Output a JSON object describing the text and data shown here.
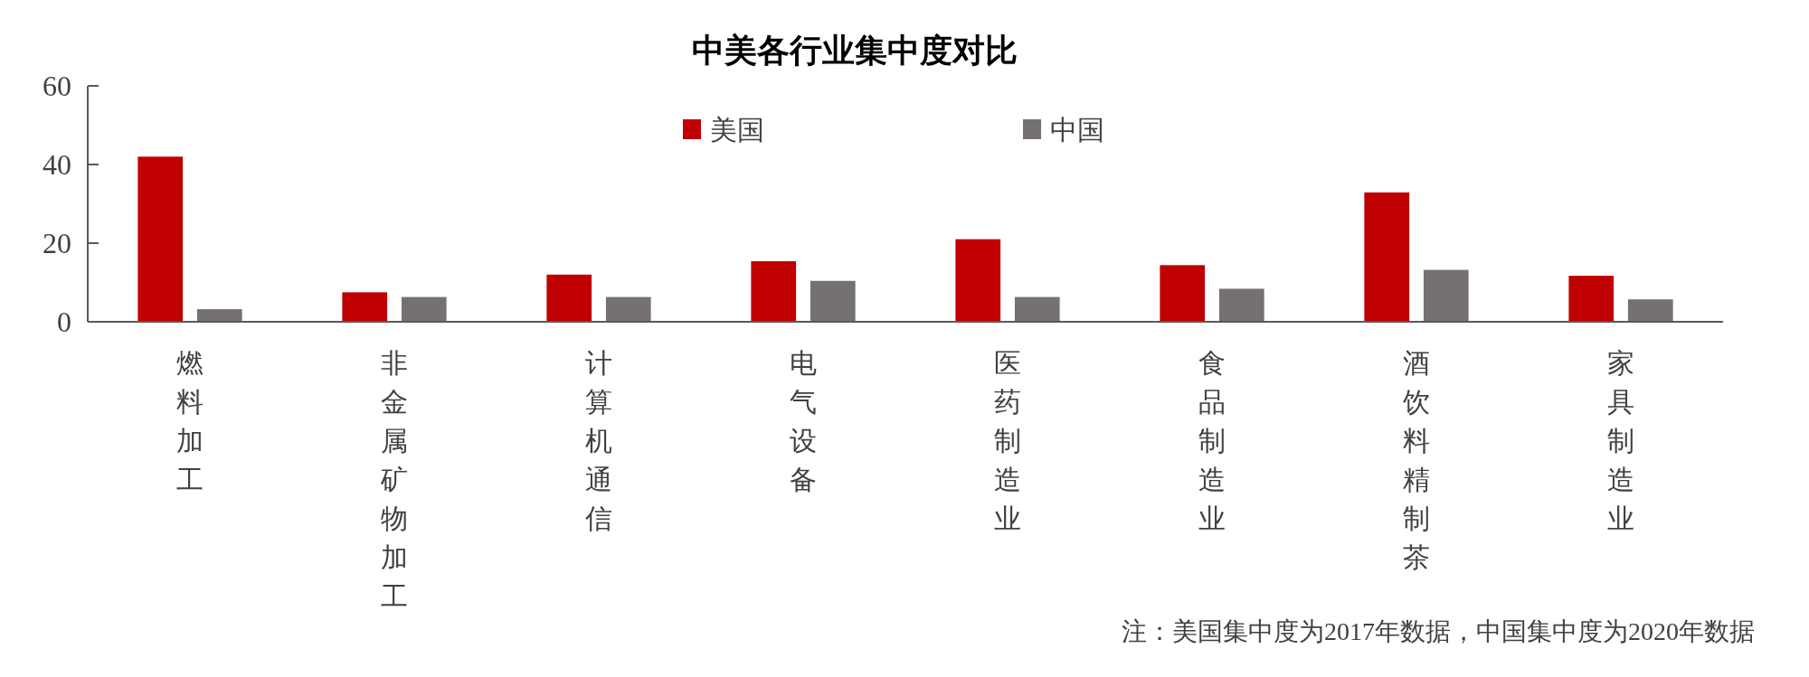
{
  "chart_data": {
    "type": "bar",
    "title": "中美各行业集中度对比",
    "categories": [
      "燃料加工",
      "非金属矿物加工",
      "计算机通信",
      "电气设备",
      "医药制造业",
      "食品制造业",
      "酒饮料精制茶",
      "家具制造业"
    ],
    "series": [
      {
        "name": "美国",
        "color": "#c00000",
        "values": [
          42,
          7.5,
          12,
          15.4,
          21,
          14.4,
          32.9,
          11.7
        ]
      },
      {
        "name": "中国",
        "color": "#767171",
        "values": [
          3.2,
          6.3,
          6.3,
          10.4,
          6.3,
          8.4,
          13.2,
          5.7
        ]
      }
    ],
    "ylim": [
      0,
      60
    ],
    "yticks": [
      0,
      20,
      40,
      60
    ],
    "grid": false,
    "legend": "top",
    "annotations": [
      "注：美国集中度为2017年数据，中国集中度为2020年数据"
    ]
  }
}
